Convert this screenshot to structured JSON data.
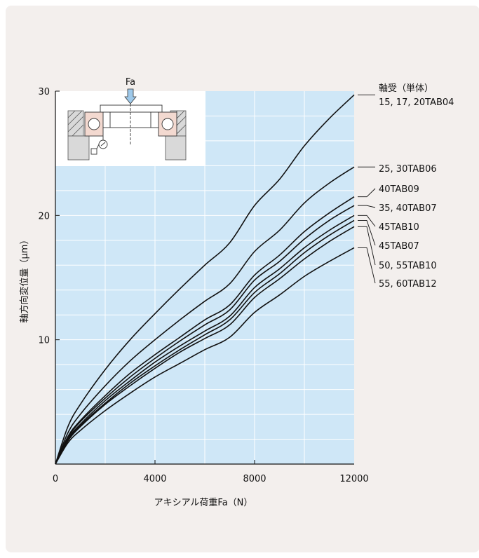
{
  "chart_data": {
    "type": "line",
    "xlabel": "アキシアル荷重Fa（N）",
    "ylabel": "軸方向変位量（μm）",
    "xlim": [
      0,
      12000
    ],
    "ylim": [
      0,
      30
    ],
    "x_ticks": [
      "0",
      "4000",
      "8000",
      "12000"
    ],
    "y_ticks": [
      "10",
      "20",
      "30"
    ],
    "grid": true,
    "legend_header": "軸受（単体）",
    "inset_label": "Fa",
    "series": [
      {
        "name": "15, 17, 20TAB04",
        "x": [
          0,
          500,
          1000,
          2000,
          3000,
          4000,
          5000,
          6000,
          7000,
          8000,
          9000,
          10000,
          11000,
          12000
        ],
        "y": [
          0,
          3.0,
          4.8,
          7.6,
          10.0,
          12.1,
          14.1,
          16.0,
          17.8,
          20.8,
          22.9,
          25.6,
          27.8,
          29.7
        ]
      },
      {
        "name": "25, 30TAB06",
        "x": [
          0,
          500,
          1000,
          2000,
          3000,
          4000,
          5000,
          6000,
          7000,
          8000,
          9000,
          10000,
          11000,
          12000
        ],
        "y": [
          0,
          2.5,
          4.0,
          6.3,
          8.3,
          10.0,
          11.6,
          13.1,
          14.5,
          17.1,
          18.8,
          21.0,
          22.6,
          23.9
        ]
      },
      {
        "name": "40TAB09",
        "x": [
          0,
          500,
          1000,
          2000,
          3000,
          4000,
          5000,
          6000,
          7000,
          8000,
          9000,
          10000,
          11000,
          12000
        ],
        "y": [
          0,
          2.2,
          3.5,
          5.5,
          7.3,
          8.8,
          10.2,
          11.6,
          12.8,
          15.2,
          16.8,
          18.7,
          20.2,
          21.5
        ]
      },
      {
        "name": "35, 40TAB07",
        "x": [
          0,
          500,
          1000,
          2000,
          3000,
          4000,
          5000,
          6000,
          7000,
          8000,
          9000,
          10000,
          11000,
          12000
        ],
        "y": [
          0,
          2.1,
          3.4,
          5.3,
          7.0,
          8.5,
          9.9,
          11.2,
          12.4,
          14.8,
          16.3,
          18.1,
          19.6,
          20.8
        ]
      },
      {
        "name": "45TAB10",
        "x": [
          0,
          500,
          1000,
          2000,
          3000,
          4000,
          5000,
          6000,
          7000,
          8000,
          9000,
          10000,
          11000,
          12000
        ],
        "y": [
          0,
          2.0,
          3.2,
          5.1,
          6.7,
          8.2,
          9.5,
          10.7,
          11.9,
          14.2,
          15.7,
          17.4,
          18.8,
          20.0
        ]
      },
      {
        "name": "45TAB07",
        "x": [
          0,
          500,
          1000,
          2000,
          3000,
          4000,
          5000,
          6000,
          7000,
          8000,
          9000,
          10000,
          11000,
          12000
        ],
        "y": [
          0,
          1.9,
          3.1,
          4.9,
          6.5,
          7.9,
          9.2,
          10.4,
          11.6,
          13.8,
          15.3,
          17.0,
          18.4,
          19.6
        ]
      },
      {
        "name": "50, 55TAB10",
        "x": [
          0,
          500,
          1000,
          2000,
          3000,
          4000,
          5000,
          6000,
          7000,
          8000,
          9000,
          10000,
          11000,
          12000
        ],
        "y": [
          0,
          1.85,
          3.0,
          4.8,
          6.3,
          7.7,
          9.0,
          10.1,
          11.2,
          13.4,
          14.9,
          16.5,
          17.9,
          19.1
        ]
      },
      {
        "name": "55, 60TAB12",
        "x": [
          0,
          500,
          1000,
          2000,
          3000,
          4000,
          5000,
          6000,
          7000,
          8000,
          9000,
          10000,
          11000,
          12000
        ],
        "y": [
          0,
          1.7,
          2.7,
          4.3,
          5.7,
          7.0,
          8.1,
          9.2,
          10.2,
          12.2,
          13.6,
          15.1,
          16.3,
          17.4
        ]
      }
    ]
  },
  "colors": {
    "panel_bg": "#f3efed",
    "plot_bg": "#cfe7f7",
    "grid": "#ffffff",
    "line": "#111111",
    "inset_bg": "#ffffff",
    "arrow_fill": "#9ec9ea"
  }
}
